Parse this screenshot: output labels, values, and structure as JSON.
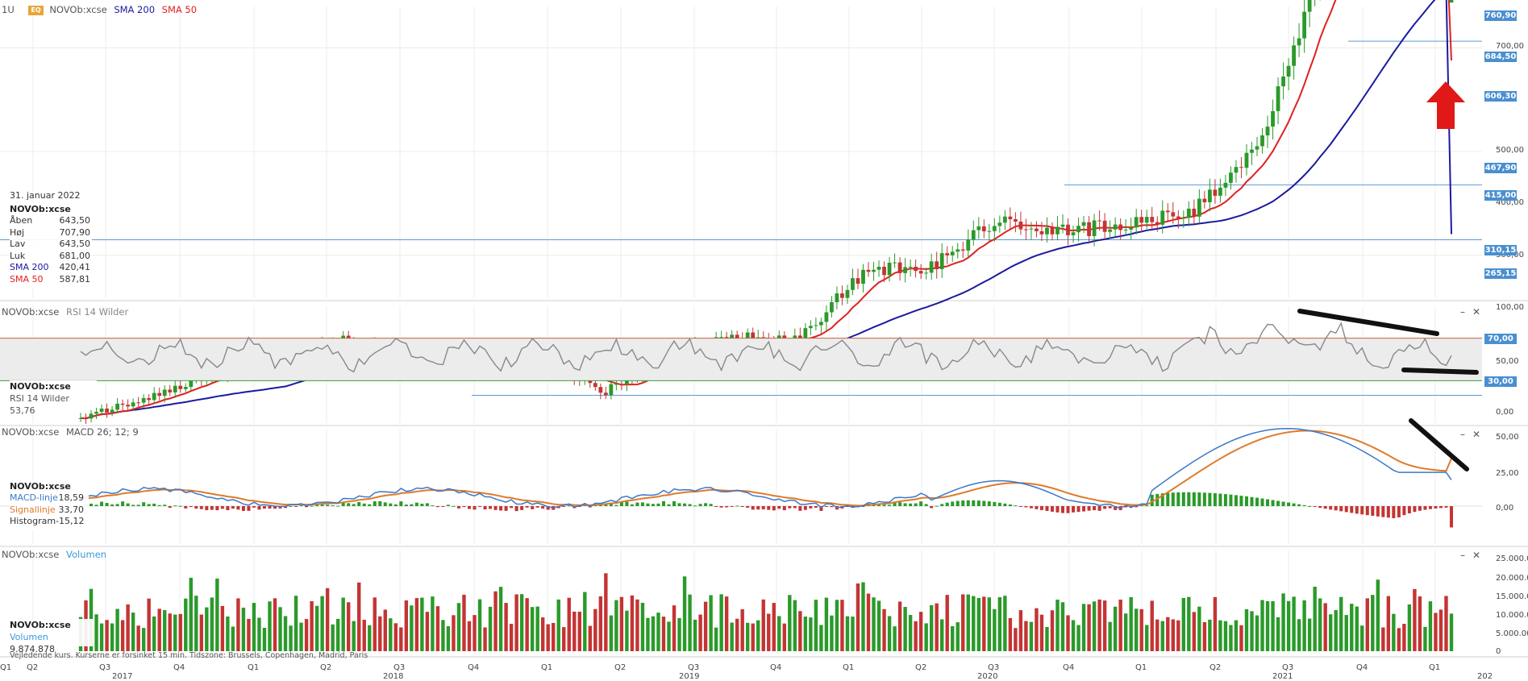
{
  "header": {
    "timeframe": "1U",
    "eq_badge": "EQ",
    "symbol": "NOVOb:xcse",
    "sma200_label": "SMA 200",
    "sma50_label": "SMA 50"
  },
  "colors": {
    "up": "#2a9a2a",
    "down": "#c43434",
    "sma200": "#1a1a9e",
    "sma50": "#e02020",
    "tag": "#4a8fd0",
    "macd_line": "#3a78c9",
    "signal_line": "#e07a2a",
    "rsi_line": "#888888",
    "arrow": "#e01818"
  },
  "info_box": {
    "date": "31. januar 2022",
    "symbol": "NOVOb:xcse",
    "rows": [
      {
        "label": "Åben",
        "value": "643,50"
      },
      {
        "label": "Høj",
        "value": "707,90"
      },
      {
        "label": "Lav",
        "value": "643,50"
      },
      {
        "label": "Luk",
        "value": "681,00"
      }
    ],
    "sma200": {
      "label": "SMA 200",
      "value": "420,41"
    },
    "sma50": {
      "label": "SMA 50",
      "value": "587,81"
    }
  },
  "rsi_panel": {
    "title": "NOVOb:xcse",
    "indicator": "RSI 14 Wilder",
    "box_symbol": "NOVOb:xcse",
    "box_label": "RSI 14 Wilder",
    "box_value": "53,76"
  },
  "macd_panel": {
    "title": "NOVOb:xcse",
    "indicator": "MACD 26; 12; 9",
    "box_symbol": "NOVOb:xcse",
    "rows": [
      {
        "label": "MACD-linje",
        "value": "18,59"
      },
      {
        "label": "Signallinje",
        "value": "33,70"
      },
      {
        "label": "Histogram",
        "value": "-15,12"
      }
    ]
  },
  "volume_panel": {
    "title": "NOVOb:xcse",
    "indicator": "Volumen",
    "box_symbol": "NOVOb:xcse",
    "box_label": "Volumen",
    "box_value": "9.874.878"
  },
  "controls": {
    "minimize": "–",
    "close": "✕"
  },
  "price_axis": {
    "ticks": [
      "700,00",
      "500,00",
      "400,00",
      "300,00"
    ],
    "tags": [
      "760,90",
      "684,50",
      "606,30",
      "467,90",
      "415,00",
      "310,15",
      "265,15"
    ]
  },
  "rsi_axis": {
    "ticks": [
      "100,00",
      "50,00",
      "0,00"
    ],
    "tags": [
      "70,00",
      "30,00"
    ]
  },
  "macd_axis": {
    "ticks": [
      "50,00",
      "25,00",
      "0,00"
    ]
  },
  "volume_axis": {
    "ticks": [
      "25.000.000",
      "20.000.000",
      "15.000.000",
      "10.000.000",
      "5.000.000",
      "0"
    ]
  },
  "time_axis": {
    "quarters": [
      "Q1",
      "Q2",
      "Q3",
      "Q4",
      "Q1",
      "Q2",
      "Q3",
      "Q4",
      "Q1",
      "Q2",
      "Q3",
      "Q4",
      "Q1",
      "Q2",
      "Q3",
      "Q4",
      "Q1",
      "Q2",
      "Q3",
      "Q4",
      "Q1"
    ],
    "years": [
      "2017",
      "2018",
      "2019",
      "2020",
      "2021",
      "202"
    ]
  },
  "footer": "Vejledende kurs. Kurserne er forsinket 15 min. Tidszone: Brussels, Copenhagen, Madrid, Paris",
  "chart_data": {
    "type": "candlestick",
    "period": "weekly",
    "x_range": [
      "2016-Q2",
      "2022-Q1"
    ],
    "price_ylim": [
      230,
      790
    ],
    "price_anchors": [
      {
        "x": "2016-12",
        "close": 245
      },
      {
        "x": "2017-Q1",
        "close": 262
      },
      {
        "x": "2017-Q2",
        "close": 285
      },
      {
        "x": "2017-Q3",
        "close": 300
      },
      {
        "x": "2017-Q4",
        "close": 318
      },
      {
        "x": "2018-Q1",
        "close": 298
      },
      {
        "x": "2018-Q2",
        "close": 292
      },
      {
        "x": "2018-Q3",
        "close": 300
      },
      {
        "x": "2018-Q4",
        "close": 268
      },
      {
        "x": "2019-Q1",
        "close": 302
      },
      {
        "x": "2019-Q2",
        "close": 322
      },
      {
        "x": "2019-Q3",
        "close": 318
      },
      {
        "x": "2019-Q4",
        "close": 385
      },
      {
        "x": "2020-Q1",
        "close": 388
      },
      {
        "x": "2020-Q2",
        "close": 432
      },
      {
        "x": "2020-Q3",
        "close": 422
      },
      {
        "x": "2020-Q4",
        "close": 430
      },
      {
        "x": "2021-Q1",
        "close": 440
      },
      {
        "x": "2021-Q2",
        "close": 500
      },
      {
        "x": "2021-Q3",
        "close": 675
      },
      {
        "x": "2021-Q4",
        "close": 748
      },
      {
        "x": "2022-01",
        "close": 681
      }
    ],
    "last_candle": {
      "open": 643.5,
      "high": 707.9,
      "low": 643.5,
      "close": 681.0
    },
    "sma200_last": 420.41,
    "sma50_last": 587.81,
    "horizontal_levels": [
      760.9,
      684.5,
      606.3,
      467.9,
      415.0,
      310.15,
      265.15
    ],
    "rsi_ylim": [
      0,
      100
    ],
    "rsi_last": 53.76,
    "rsi_bands": [
      70,
      30
    ],
    "macd_ylim": [
      -12,
      62
    ],
    "macd_last": 18.59,
    "signal_last": 33.7,
    "histogram_last": -15.12,
    "volume_ylim": [
      0,
      28000000
    ],
    "volume_last": 9874878
  }
}
